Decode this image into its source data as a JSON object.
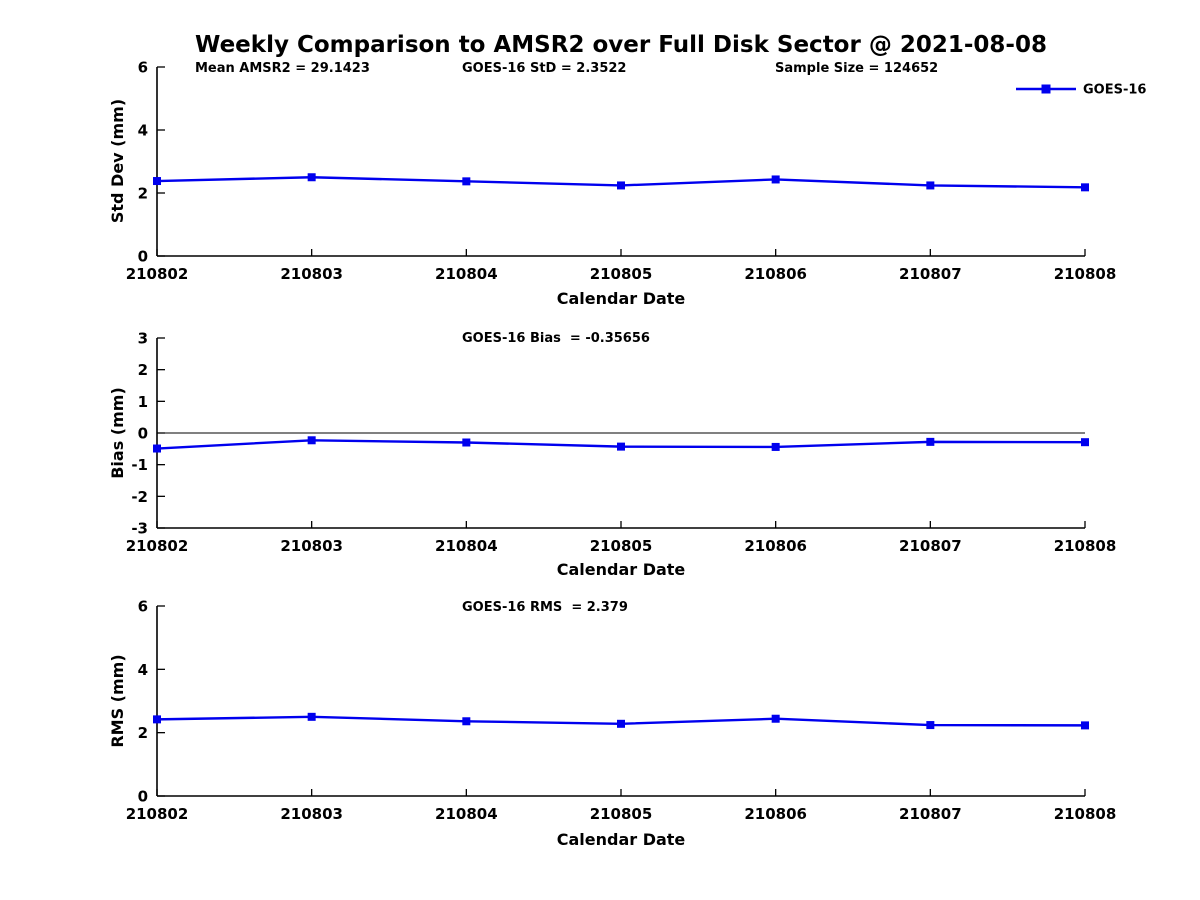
{
  "page_title": "Weekly Comparison to AMSR2 over Full Disk Sector @ 2021-08-08",
  "colors": {
    "series": "#0000EE",
    "axis": "#000000",
    "background": "#FFFFFF"
  },
  "legend": {
    "label": "GOES-16",
    "position": "top-right",
    "marker": "square"
  },
  "chart_data": [
    {
      "id": "std_dev",
      "type": "line",
      "title": "",
      "xlabel": "Calendar Date",
      "ylabel": "Std Dev (mm)",
      "x": [
        "210802",
        "210803",
        "210804",
        "210805",
        "210806",
        "210807",
        "210808"
      ],
      "series": [
        {
          "name": "GOES-16",
          "color": "#0000EE",
          "marker": "square",
          "values": [
            2.38,
            2.5,
            2.37,
            2.24,
            2.43,
            2.24,
            2.18
          ]
        }
      ],
      "ylim": [
        0,
        6
      ],
      "yticks": [
        0,
        2,
        4,
        6
      ],
      "grid": false,
      "zero_line": false,
      "annotations": [
        {
          "text": "Mean AMSR2 = 29.1423"
        },
        {
          "text": "GOES-16 StD = 2.3522"
        },
        {
          "text": "Sample Size = 124652"
        }
      ]
    },
    {
      "id": "bias",
      "type": "line",
      "title": "",
      "xlabel": "Calendar Date",
      "ylabel": "Bias (mm)",
      "x": [
        "210802",
        "210803",
        "210804",
        "210805",
        "210806",
        "210807",
        "210808"
      ],
      "series": [
        {
          "name": "GOES-16",
          "color": "#0000EE",
          "marker": "square",
          "values": [
            -0.49,
            -0.23,
            -0.3,
            -0.43,
            -0.44,
            -0.28,
            -0.29
          ]
        }
      ],
      "ylim": [
        -3,
        3
      ],
      "yticks": [
        -3,
        -2,
        -1,
        0,
        1,
        2,
        3
      ],
      "grid": false,
      "zero_line": true,
      "annotations": [
        {
          "text": "GOES-16 Bias  = -0.35656"
        }
      ]
    },
    {
      "id": "rms",
      "type": "line",
      "title": "",
      "xlabel": "Calendar Date",
      "ylabel": "RMS (mm)",
      "x": [
        "210802",
        "210803",
        "210804",
        "210805",
        "210806",
        "210807",
        "210808"
      ],
      "series": [
        {
          "name": "GOES-16",
          "color": "#0000EE",
          "marker": "square",
          "values": [
            2.42,
            2.5,
            2.36,
            2.28,
            2.44,
            2.24,
            2.23
          ]
        }
      ],
      "ylim": [
        0,
        6
      ],
      "yticks": [
        0,
        2,
        4,
        6
      ],
      "grid": false,
      "zero_line": false,
      "annotations": [
        {
          "text": "GOES-16 RMS  = 2.379"
        }
      ]
    }
  ]
}
